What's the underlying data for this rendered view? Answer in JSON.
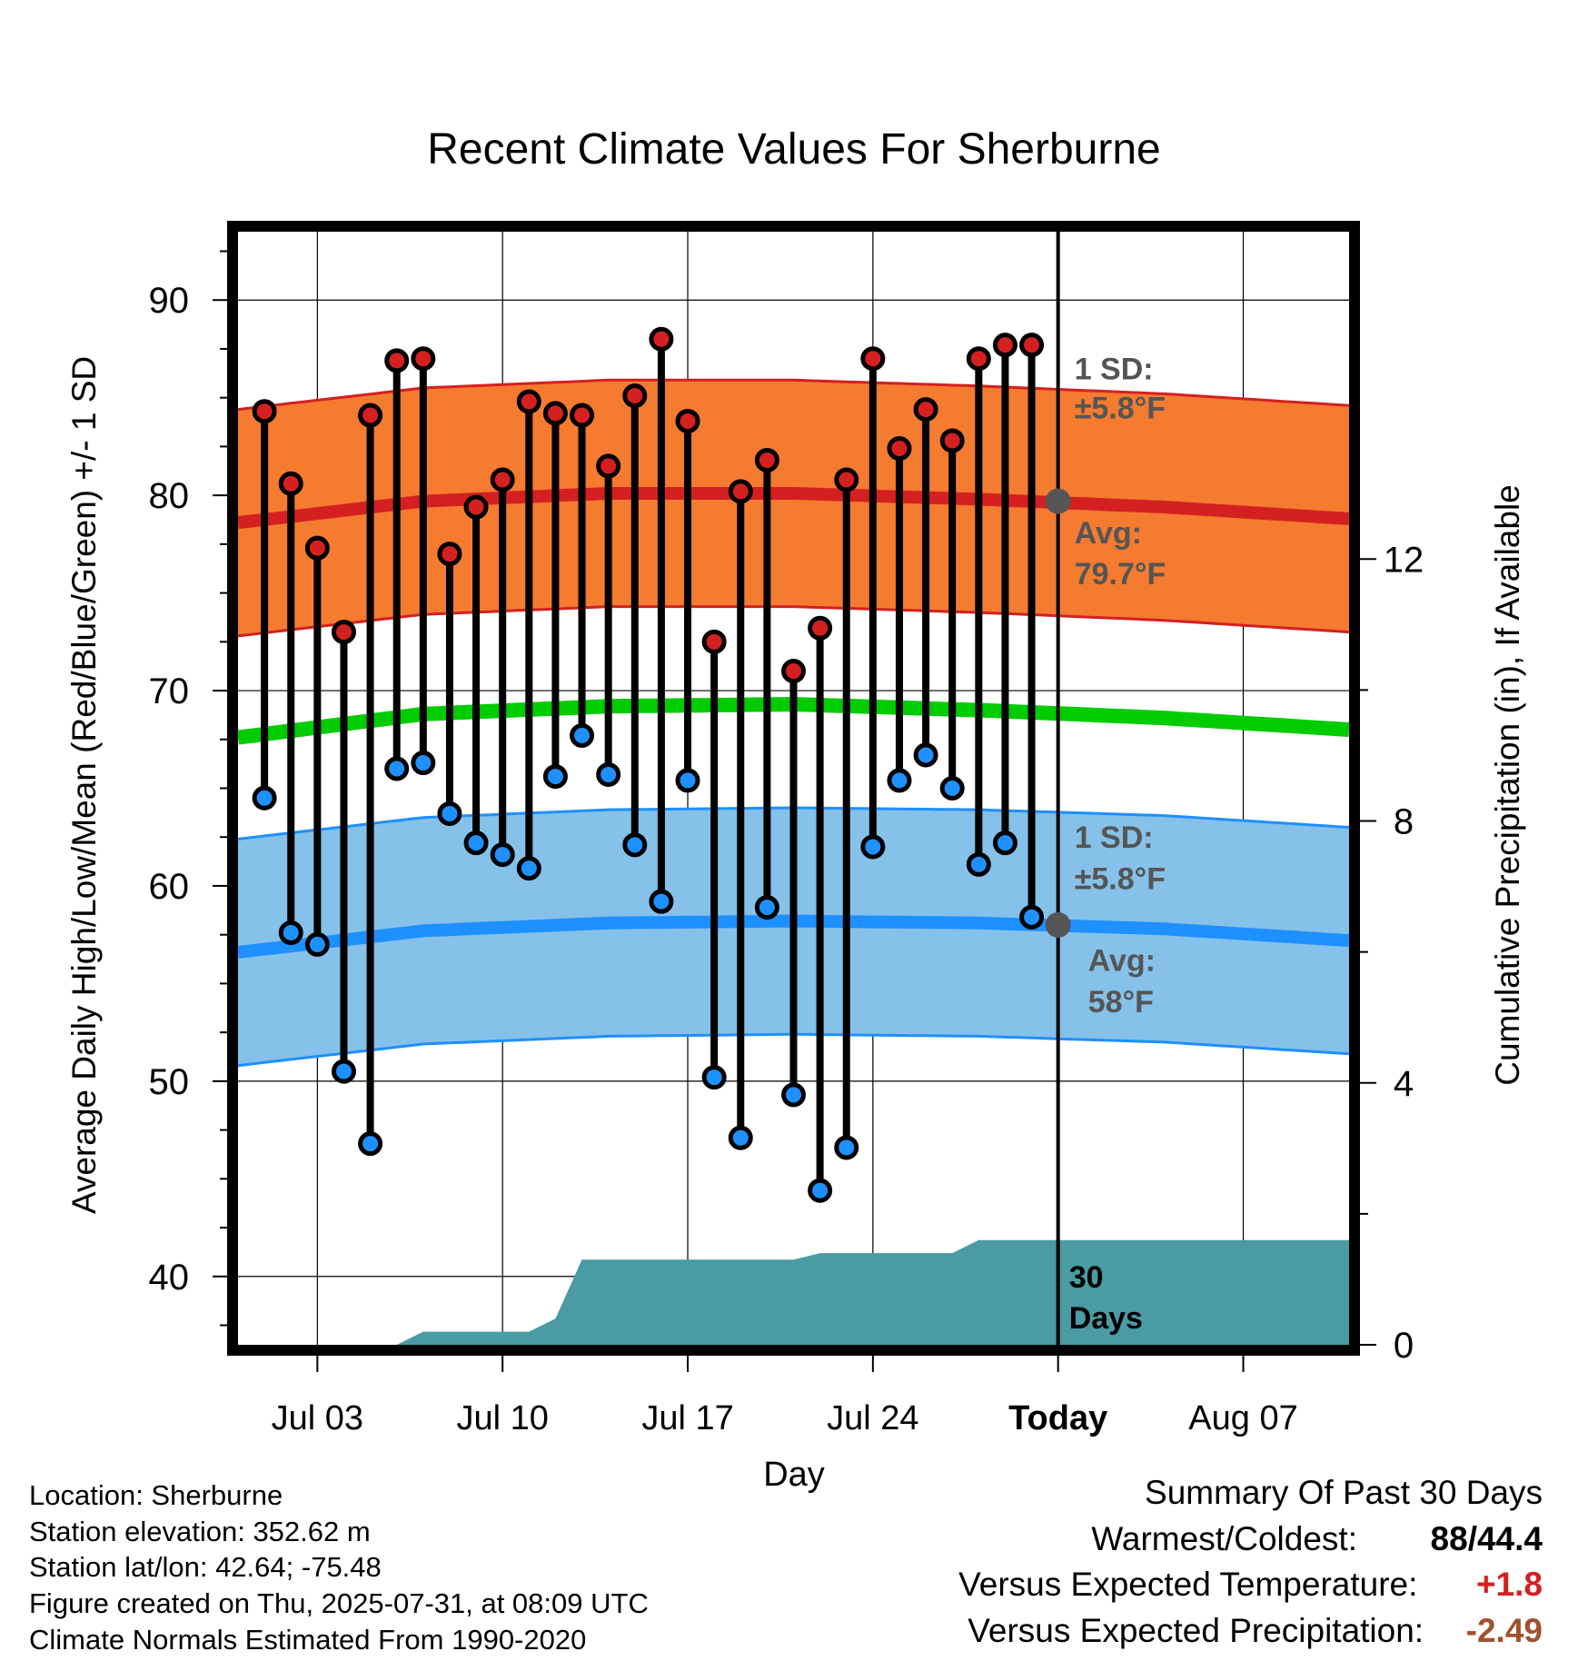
{
  "chart_data": {
    "type": "line",
    "title": "Recent Climate Values For Sherburne",
    "xlabel": "Day",
    "ylabel": "Average Daily High/Low/Mean (Red/Blue/Green) +/- 1 SD",
    "y2label": "Cumulative Precipitation (in), If Available",
    "x_range_days": [
      0,
      42
    ],
    "ylim": [
      36.5,
      93.5
    ],
    "y2lim": [
      0,
      17
    ],
    "yticks": [
      "40",
      "50",
      "60",
      "70",
      "80",
      "90"
    ],
    "y2ticks": [
      "0",
      "4",
      "8",
      "12"
    ],
    "x_ticks": [
      {
        "day": 3,
        "label": "Jul 03"
      },
      {
        "day": 10,
        "label": "Jul 10"
      },
      {
        "day": 17,
        "label": "Jul 17"
      },
      {
        "day": 24,
        "label": "Jul 24"
      },
      {
        "day": 31,
        "label": "Today"
      },
      {
        "day": 38,
        "label": "Aug 07"
      }
    ],
    "grid": true,
    "days": [
      1,
      2,
      3,
      4,
      5,
      6,
      7,
      8,
      9,
      10,
      11,
      12,
      13,
      14,
      15,
      16,
      17,
      18,
      19,
      20,
      21,
      22,
      23,
      24,
      25,
      26,
      27,
      28,
      29,
      30
    ],
    "highs": [
      84.3,
      80.6,
      77.3,
      73.0,
      84.1,
      86.9,
      87.0,
      77.0,
      79.4,
      80.8,
      84.8,
      84.2,
      84.1,
      81.5,
      85.1,
      88.0,
      83.8,
      72.5,
      80.2,
      81.8,
      71.0,
      73.2,
      80.8,
      87.0,
      82.4,
      84.4,
      82.8,
      87.0,
      87.7,
      87.7
    ],
    "lows": [
      64.5,
      57.6,
      57.0,
      50.5,
      46.8,
      66.0,
      66.3,
      63.7,
      62.2,
      61.6,
      60.9,
      65.6,
      67.7,
      65.7,
      62.1,
      59.2,
      65.4,
      50.2,
      47.1,
      58.9,
      49.3,
      44.4,
      46.6,
      62.0,
      65.4,
      66.7,
      65.0,
      61.1,
      62.2,
      58.4
    ],
    "normal_high": {
      "days": [
        0,
        7,
        14,
        21,
        28,
        35,
        42
      ],
      "values": [
        78.6,
        79.7,
        80.1,
        80.1,
        79.8,
        79.4,
        78.8
      ]
    },
    "normal_low": {
      "days": [
        0,
        7,
        14,
        21,
        28,
        35,
        42
      ],
      "values": [
        56.6,
        57.7,
        58.1,
        58.2,
        58.1,
        57.8,
        57.2
      ]
    },
    "normal_mean": {
      "days": [
        0,
        7,
        14,
        21,
        28,
        35,
        42
      ],
      "values": [
        67.6,
        68.8,
        69.2,
        69.3,
        69.0,
        68.6,
        68.0
      ]
    },
    "sd": 5.8,
    "precip": {
      "days": [
        0,
        6,
        7,
        11,
        12,
        13,
        21,
        22,
        27,
        28,
        31,
        42
      ],
      "values": [
        0,
        0,
        0.2,
        0.2,
        0.4,
        1.3,
        1.3,
        1.4,
        1.4,
        1.6,
        1.6,
        1.6
      ]
    },
    "today_day": 31,
    "annotations": {
      "high_sd_line1": "1 SD:",
      "high_sd_line2": "±5.8°F",
      "high_avg_line1": "Avg:",
      "high_avg_line2": "79.7°F",
      "low_sd_line1": "1 SD:",
      "low_sd_line2": "±5.8°F",
      "low_avg_line1": "Avg:",
      "low_avg_line2": "58°F",
      "days_line1": "30",
      "days_line2": "Days"
    },
    "today_high_avg": 79.7,
    "today_low_avg": 58.0,
    "colors": {
      "high_band": "#F47B30",
      "high_line": "#D42020",
      "low_band": "#85C1E9",
      "low_line": "#1E90FF",
      "mean_line": "#00CC00",
      "precip": "#4A9BA3",
      "annotation": "#555555",
      "high_dot": "#D42020",
      "low_dot": "#1E90FF"
    }
  },
  "footer": {
    "location": "Location: Sherburne",
    "elevation": "Station elevation: 352.62 m",
    "latlon": "Station lat/lon: 42.64; -75.48",
    "created": "Figure created on Thu, 2025-07-31, at 08:09 UTC",
    "normals": "Climate Normals Estimated From 1990-2020"
  },
  "summary": {
    "heading": "Summary Of Past 30 Days",
    "warm_cold_label": "Warmest/Coldest:",
    "warmest": "88",
    "slash": "/",
    "coldest": "44.4",
    "temp_label": "Versus Expected Temperature:",
    "temp_value": "+1.8",
    "temp_color": "#D42020",
    "precip_label": "Versus Expected Precipitation:",
    "precip_value": "-2.49",
    "precip_color": "#A0522D"
  }
}
